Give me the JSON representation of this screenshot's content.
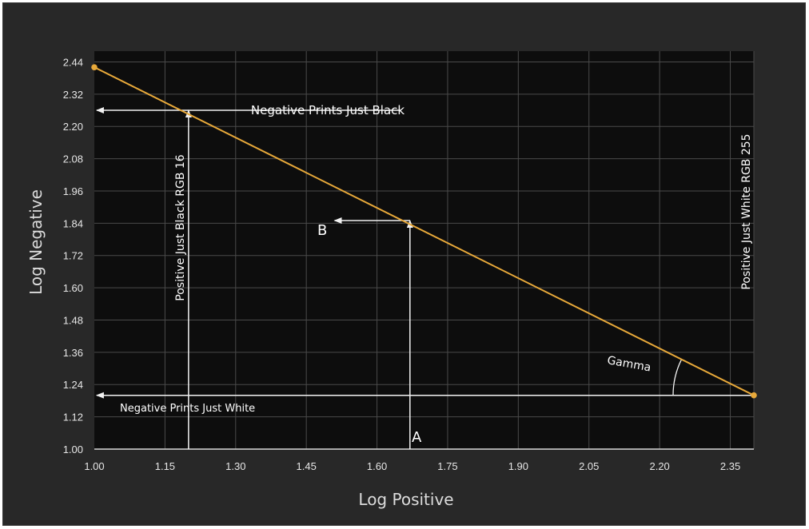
{
  "chart_data": {
    "type": "line",
    "xlabel": "Log Positive",
    "ylabel": "Log Negative",
    "xlim": [
      1.0,
      2.4
    ],
    "ylim": [
      1.0,
      2.48
    ],
    "x_ticks": [
      "1.00",
      "1.15",
      "1.30",
      "1.45",
      "1.60",
      "1.75",
      "1.90",
      "2.05",
      "2.20",
      "2.35"
    ],
    "y_ticks": [
      "1.00",
      "1.12",
      "1.24",
      "1.36",
      "1.48",
      "1.60",
      "1.72",
      "1.84",
      "1.96",
      "2.08",
      "2.20",
      "2.32",
      "2.44"
    ],
    "grid": true,
    "series": [
      {
        "points": [
          [
            1.0,
            2.42
          ],
          [
            1.2,
            2.26
          ],
          [
            1.67,
            1.85
          ],
          [
            2.4,
            1.2
          ]
        ]
      }
    ],
    "annotations": {
      "neg_black": "Negative Prints Just Black",
      "neg_white": "Negative Prints Just White",
      "pos_black": "Positive Just Black RGB 16",
      "pos_white": "Positive Just White RGB 255",
      "label_a": "A",
      "label_b": "B",
      "gamma": "Gamma"
    },
    "colors": {
      "background": "#282828",
      "plot_area": "#0d0d0d",
      "grid": "#4a4a4a",
      "line": "#e8a93a",
      "arrows": "#f2f2f2"
    }
  }
}
